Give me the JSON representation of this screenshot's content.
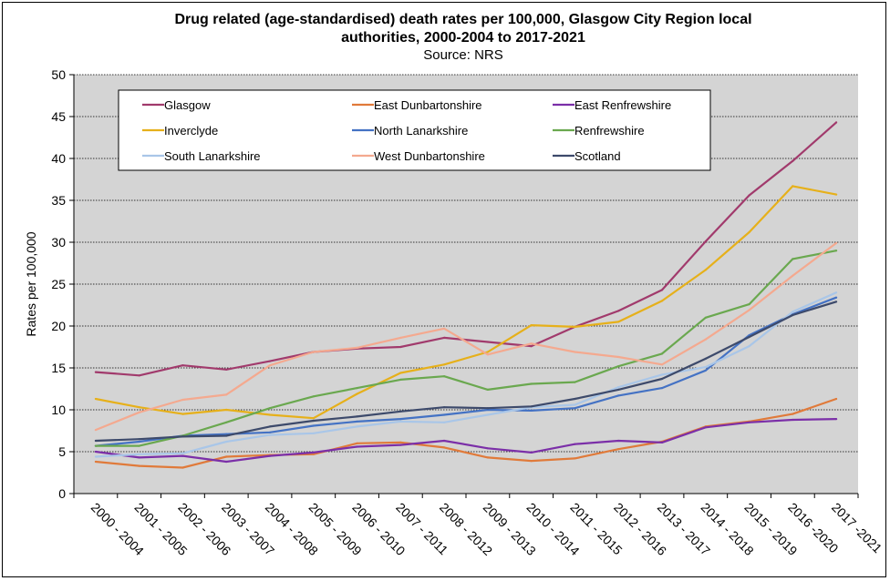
{
  "chart_data": {
    "type": "line",
    "title": "Drug related (age-standardised) death rates per 100,000, Glasgow City Region local",
    "title_line2": "authorities, 2000-2004 to 2017-2021",
    "subtitle": "Source: NRS",
    "xlabel": "",
    "ylabel": "Rates per 100,000",
    "ylim": [
      0,
      50
    ],
    "yticks": [
      0,
      5,
      10,
      15,
      20,
      25,
      30,
      35,
      40,
      45,
      50
    ],
    "grid": true,
    "legend_position": "top",
    "categories": [
      "2000 - 2004",
      "2001 - 2005",
      "2002 - 2006",
      "2003 - 2007",
      "2004 - 2008",
      "2005 - 2009",
      "2006 - 2010",
      "2007 - 2011",
      "2008 - 2012",
      "2009 - 2013",
      "2010 - 2014",
      "2011 - 2015",
      "2012 - 2016",
      "2013 - 2017",
      "2014 - 2018",
      "2015 - 2019",
      "2016 -2020",
      "2017 -2021"
    ],
    "series": [
      {
        "name": "Glasgow",
        "color": "#a13a6c",
        "values": [
          14.5,
          14.1,
          15.3,
          14.8,
          15.8,
          16.9,
          17.3,
          17.5,
          18.6,
          18.1,
          17.6,
          19.9,
          21.8,
          24.3,
          30.1,
          35.6,
          39.7,
          44.3
        ]
      },
      {
        "name": "East Dunbartonshire",
        "color": "#e07a3a",
        "values": [
          3.8,
          3.3,
          3.1,
          4.4,
          4.6,
          4.7,
          6.0,
          6.1,
          5.5,
          4.3,
          3.9,
          4.2,
          5.3,
          6.2,
          8.0,
          8.6,
          9.5,
          11.3
        ]
      },
      {
        "name": "East Renfrewshire",
        "color": "#7b2fa8",
        "values": [
          5.0,
          4.3,
          4.5,
          3.8,
          4.5,
          4.9,
          5.6,
          5.8,
          6.3,
          5.4,
          4.9,
          5.9,
          6.3,
          6.1,
          7.9,
          8.5,
          8.8,
          8.9
        ]
      },
      {
        "name": "Inverclyde",
        "color": "#e6b01a",
        "values": [
          11.3,
          10.3,
          9.5,
          10.0,
          9.4,
          9.0,
          11.9,
          14.4,
          15.4,
          16.9,
          20.1,
          19.9,
          20.5,
          23.0,
          26.7,
          31.2,
          36.7,
          35.7
        ]
      },
      {
        "name": "North Lanarkshire",
        "color": "#4472c4",
        "values": [
          5.7,
          6.2,
          6.9,
          7.1,
          7.3,
          8.1,
          8.6,
          8.9,
          9.4,
          10.0,
          9.9,
          10.2,
          11.7,
          12.6,
          14.7,
          18.9,
          21.4,
          23.4
        ]
      },
      {
        "name": "Renfrewshire",
        "color": "#6aa84f",
        "values": [
          5.7,
          5.7,
          6.9,
          8.5,
          10.2,
          11.6,
          12.6,
          13.6,
          14.0,
          12.4,
          13.1,
          13.3,
          15.2,
          16.7,
          21.0,
          22.6,
          28.0,
          29.0
        ]
      },
      {
        "name": "South Lanarkshire",
        "color": "#a9c6e8",
        "values": [
          4.4,
          4.7,
          4.8,
          6.2,
          7.0,
          7.2,
          8.0,
          8.6,
          8.5,
          9.4,
          10.3,
          10.6,
          12.7,
          14.2,
          15.1,
          17.6,
          21.7,
          24.0
        ]
      },
      {
        "name": "West Dunbartonshire",
        "color": "#f4a98f",
        "values": [
          7.6,
          9.7,
          11.2,
          11.8,
          15.3,
          16.9,
          17.4,
          18.6,
          19.7,
          16.6,
          17.9,
          16.9,
          16.3,
          15.4,
          18.4,
          21.9,
          26.0,
          29.9
        ]
      },
      {
        "name": "Scotland",
        "color": "#3d4a6b",
        "values": [
          6.3,
          6.5,
          6.8,
          6.9,
          8.0,
          8.7,
          9.2,
          9.8,
          10.3,
          10.2,
          10.4,
          11.3,
          12.4,
          13.7,
          16.1,
          18.7,
          21.3,
          22.9
        ]
      }
    ]
  }
}
